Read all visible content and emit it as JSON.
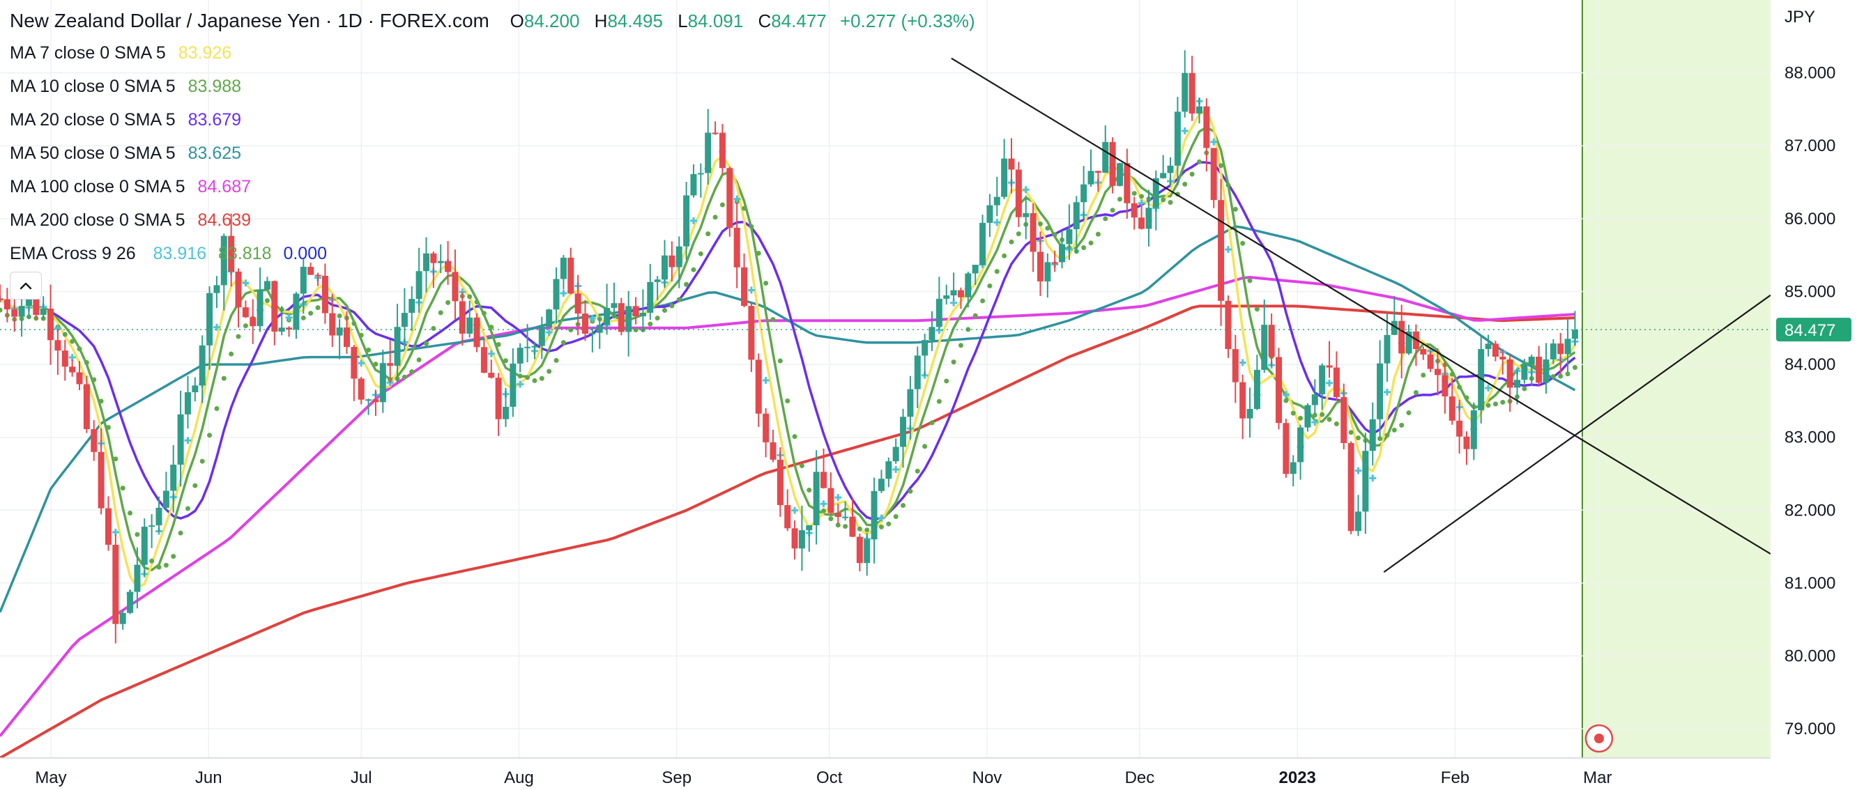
{
  "header": {
    "symbol_title": "New Zealand Dollar / Japanese Yen · 1D · FOREX.com",
    "open_label": "O",
    "open": "84.200",
    "high_label": "H",
    "high": "84.495",
    "low_label": "L",
    "low": "84.091",
    "close_label": "C",
    "close": "84.477",
    "change": "+0.277 (+0.33%)"
  },
  "indicators": [
    {
      "label": "MA 7 close 0 SMA 5",
      "value": "83.926",
      "color": "#f5e356"
    },
    {
      "label": "MA 10 close 0 SMA 5",
      "value": "83.988",
      "color": "#5fa84a"
    },
    {
      "label": "MA 20 close 0 SMA 5",
      "value": "83.679",
      "color": "#6a2ef0"
    },
    {
      "label": "MA 50 close 0 SMA 5",
      "value": "83.625",
      "color": "#2e939e"
    },
    {
      "label": "MA 100 close 0 SMA 5",
      "value": "84.687",
      "color": "#e040e6"
    },
    {
      "label": "MA 200 close 0 SMA 5",
      "value": "84.639",
      "color": "#e0413d"
    }
  ],
  "ema_cross": {
    "label": "EMA Cross 9 26",
    "v1": "83.916",
    "c1": "#4fc3d6",
    "v2": "83.818",
    "c2": "#5fa84a",
    "v3": "0.000",
    "c3": "#1e2bd6"
  },
  "collapse_icon": "chevron-up-icon",
  "currency": "JPY",
  "last_price_badge": "84.477",
  "colors": {
    "up": "#2e9e8a",
    "down": "#e5484d",
    "highlight": "#e9f7d9",
    "highlight_line": "#4a8a2a",
    "badge": "#22a577"
  },
  "chart_data": {
    "type": "candlestick",
    "title": "New Zealand Dollar / Japanese Yen · 1D · FOREX.com",
    "ylabel": "JPY",
    "ylim": [
      78.6,
      89.0
    ],
    "y_ticks": [
      "79.000",
      "80.000",
      "81.000",
      "82.000",
      "83.000",
      "84.000",
      "85.000",
      "86.000",
      "87.000",
      "88.000"
    ],
    "x_range_days": [
      -10,
      338
    ],
    "x_ticks": [
      {
        "label": "May",
        "day": 0
      },
      {
        "label": "Jun",
        "day": 31
      },
      {
        "label": "Jul",
        "day": 61
      },
      {
        "label": "Aug",
        "day": 92
      },
      {
        "label": "Sep",
        "day": 123
      },
      {
        "label": "Oct",
        "day": 153
      },
      {
        "label": "Nov",
        "day": 184
      },
      {
        "label": "Dec",
        "day": 214
      },
      {
        "label": "2023",
        "day": 245
      },
      {
        "label": "Feb",
        "day": 276
      },
      {
        "label": "Mar",
        "day": 304
      }
    ],
    "last_close": 84.477,
    "highlight_from_day": 301,
    "price_path": [
      [
        -10,
        84.9
      ],
      [
        -2,
        84.8
      ],
      [
        2,
        84.3
      ],
      [
        6,
        83.4
      ],
      [
        10,
        82.2
      ],
      [
        13,
        80.2
      ],
      [
        17,
        81.3
      ],
      [
        21,
        82.0
      ],
      [
        26,
        83.2
      ],
      [
        31,
        84.8
      ],
      [
        34,
        85.8
      ],
      [
        38,
        84.4
      ],
      [
        42,
        85.1
      ],
      [
        46,
        84.2
      ],
      [
        50,
        85.6
      ],
      [
        55,
        84.7
      ],
      [
        60,
        83.8
      ],
      [
        64,
        83.5
      ],
      [
        68,
        84.5
      ],
      [
        72,
        85.1
      ],
      [
        76,
        85.5
      ],
      [
        80,
        84.8
      ],
      [
        84,
        84.1
      ],
      [
        88,
        83.3
      ],
      [
        93,
        84.2
      ],
      [
        97,
        84.7
      ],
      [
        101,
        85.3
      ],
      [
        106,
        84.5
      ],
      [
        110,
        84.6
      ],
      [
        114,
        84.7
      ],
      [
        118,
        85.0
      ],
      [
        122,
        85.4
      ],
      [
        126,
        86.5
      ],
      [
        130,
        87.2
      ],
      [
        134,
        85.8
      ],
      [
        137,
        84.4
      ],
      [
        140,
        83.0
      ],
      [
        143,
        82.4
      ],
      [
        147,
        81.5
      ],
      [
        151,
        82.4
      ],
      [
        155,
        81.8
      ],
      [
        159,
        81.4
      ],
      [
        163,
        82.6
      ],
      [
        167,
        83.2
      ],
      [
        171,
        84.2
      ],
      [
        175,
        85.0
      ],
      [
        179,
        84.8
      ],
      [
        183,
        85.8
      ],
      [
        187,
        86.8
      ],
      [
        191,
        86.0
      ],
      [
        195,
        85.2
      ],
      [
        199,
        85.9
      ],
      [
        203,
        86.6
      ],
      [
        207,
        86.9
      ],
      [
        211,
        86.4
      ],
      [
        215,
        86.0
      ],
      [
        219,
        86.6
      ],
      [
        223,
        87.8
      ],
      [
        227,
        87.2
      ],
      [
        231,
        84.2
      ],
      [
        235,
        83.0
      ],
      [
        239,
        84.6
      ],
      [
        243,
        82.5
      ],
      [
        247,
        83.6
      ],
      [
        250,
        84.0
      ],
      [
        253,
        83.5
      ],
      [
        256,
        81.4
      ],
      [
        259,
        83.0
      ],
      [
        263,
        84.6
      ],
      [
        267,
        84.2
      ],
      [
        271,
        83.8
      ],
      [
        275,
        83.5
      ],
      [
        278,
        83.0
      ],
      [
        281,
        84.0
      ],
      [
        284,
        84.3
      ],
      [
        287,
        83.9
      ],
      [
        290,
        83.8
      ],
      [
        293,
        84.0
      ],
      [
        296,
        84.1
      ],
      [
        298,
        84.2
      ],
      [
        300,
        84.48
      ]
    ],
    "series": [
      {
        "name": "MA 7 close 0 SMA 5",
        "last": 83.926,
        "color": "#f5e356"
      },
      {
        "name": "MA 10 close 0 SMA 5",
        "last": 83.988,
        "color": "#5fa84a"
      },
      {
        "name": "MA 20 close 0 SMA 5",
        "last": 83.679,
        "color": "#6a2ef0"
      },
      {
        "name": "MA 50 close 0 SMA 5",
        "last": 83.625,
        "color": "#2e939e"
      },
      {
        "name": "MA 100 close 0 SMA 5",
        "last": 84.687,
        "color": "#e040e6"
      },
      {
        "name": "MA 200 close 0 SMA 5",
        "last": 84.639,
        "color": "#e0413d"
      },
      {
        "name": "EMA Cross 9 26",
        "last": 83.916,
        "color": "#4fc3d6"
      }
    ],
    "ma100_path": [
      [
        -10,
        78.9
      ],
      [
        5,
        80.2
      ],
      [
        20,
        80.9
      ],
      [
        35,
        81.6
      ],
      [
        50,
        82.6
      ],
      [
        65,
        83.6
      ],
      [
        80,
        84.3
      ],
      [
        95,
        84.5
      ],
      [
        110,
        84.5
      ],
      [
        125,
        84.5
      ],
      [
        140,
        84.6
      ],
      [
        155,
        84.6
      ],
      [
        170,
        84.6
      ],
      [
        185,
        84.65
      ],
      [
        200,
        84.7
      ],
      [
        215,
        84.8
      ],
      [
        225,
        85.0
      ],
      [
        235,
        85.2
      ],
      [
        250,
        85.1
      ],
      [
        265,
        84.9
      ],
      [
        280,
        84.6
      ],
      [
        300,
        84.69
      ]
    ],
    "ma200_path": [
      [
        -10,
        78.6
      ],
      [
        10,
        79.4
      ],
      [
        30,
        80.0
      ],
      [
        50,
        80.6
      ],
      [
        70,
        81.0
      ],
      [
        90,
        81.3
      ],
      [
        110,
        81.6
      ],
      [
        125,
        82.0
      ],
      [
        140,
        82.5
      ],
      [
        155,
        82.8
      ],
      [
        170,
        83.1
      ],
      [
        185,
        83.6
      ],
      [
        200,
        84.1
      ],
      [
        215,
        84.5
      ],
      [
        225,
        84.8
      ],
      [
        245,
        84.8
      ],
      [
        265,
        84.7
      ],
      [
        285,
        84.6
      ],
      [
        300,
        84.64
      ]
    ],
    "ma50_path": [
      [
        -10,
        80.6
      ],
      [
        0,
        82.3
      ],
      [
        10,
        83.2
      ],
      [
        20,
        83.6
      ],
      [
        30,
        84.0
      ],
      [
        40,
        84.0
      ],
      [
        50,
        84.1
      ],
      [
        60,
        84.1
      ],
      [
        70,
        84.2
      ],
      [
        80,
        84.3
      ],
      [
        90,
        84.4
      ],
      [
        100,
        84.6
      ],
      [
        110,
        84.7
      ],
      [
        120,
        84.8
      ],
      [
        130,
        85.0
      ],
      [
        140,
        84.8
      ],
      [
        150,
        84.4
      ],
      [
        160,
        84.3
      ],
      [
        170,
        84.3
      ],
      [
        180,
        84.35
      ],
      [
        190,
        84.4
      ],
      [
        200,
        84.6
      ],
      [
        215,
        85.0
      ],
      [
        225,
        85.6
      ],
      [
        233,
        85.9
      ],
      [
        245,
        85.7
      ],
      [
        255,
        85.4
      ],
      [
        265,
        85.1
      ],
      [
        275,
        84.7
      ],
      [
        285,
        84.2
      ],
      [
        300,
        83.63
      ]
    ],
    "trendline_upper": [
      [
        177,
        88.2
      ],
      [
        338,
        81.4
      ]
    ],
    "trendline_lower": [
      [
        262,
        81.15
      ],
      [
        338,
        84.95
      ]
    ]
  }
}
